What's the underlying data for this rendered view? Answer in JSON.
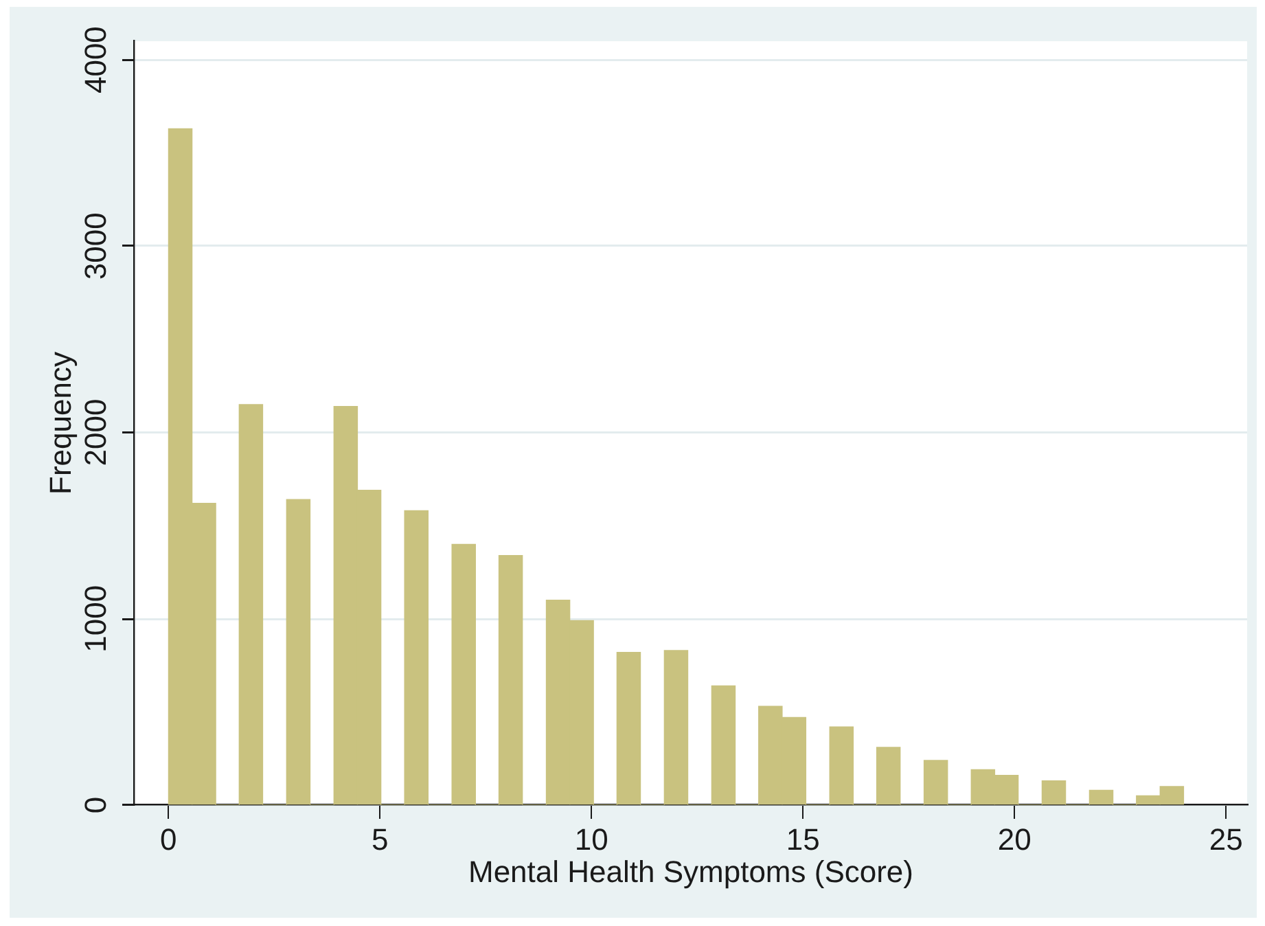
{
  "chart_data": {
    "type": "histogram",
    "xlabel": "Mental Health Symptoms (Score)",
    "ylabel": "Frequency",
    "bins": [
      0,
      0.56,
      1.12,
      1.67,
      2.23,
      2.79,
      3.35,
      3.91,
      4.47,
      5.02,
      5.58,
      6.14,
      6.7,
      7.26,
      7.81,
      8.37,
      8.93,
      9.49,
      10.05,
      10.6,
      11.16,
      11.72,
      12.28,
      12.84,
      13.4,
      13.95,
      14.51,
      15.07,
      15.63,
      16.19,
      16.74,
      17.3,
      17.86,
      18.42,
      18.98,
      19.53,
      20.09,
      20.65,
      21.21,
      21.77,
      22.33,
      22.88,
      23.44,
      24
    ],
    "values": [
      3630,
      1620,
      0,
      2150,
      0,
      1640,
      0,
      2140,
      1690,
      0,
      1580,
      0,
      1400,
      0,
      1340,
      0,
      1100,
      990,
      0,
      820,
      0,
      830,
      0,
      640,
      0,
      530,
      470,
      0,
      420,
      0,
      310,
      0,
      240,
      0,
      190,
      160,
      0,
      130,
      0,
      80,
      0,
      50,
      100
    ],
    "color": "#c9c27f",
    "xlim": [
      -0.8,
      25.5
    ],
    "ylim": [
      0,
      4100
    ],
    "xticks": [
      0,
      5,
      10,
      15,
      20,
      25
    ],
    "yticks": [
      0,
      1000,
      2000,
      3000,
      4000
    ],
    "grid": "y"
  }
}
